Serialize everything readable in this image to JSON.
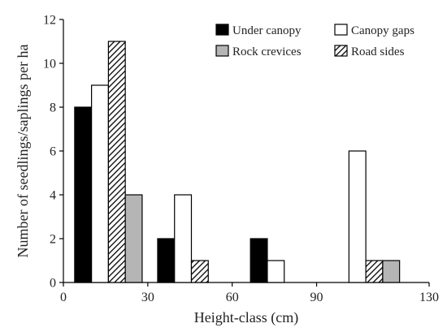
{
  "chart_data": {
    "type": "bar",
    "xlabel": "Height-class (cm)",
    "ylabel": "Number of seedlings/saplings per ha",
    "xlim": [
      0,
      130
    ],
    "ylim": [
      0,
      12
    ],
    "xticks": [
      "0",
      "30",
      "60",
      "90",
      "130"
    ],
    "yticks": [
      "0",
      "2",
      "4",
      "6",
      "8",
      "10",
      "12"
    ],
    "grid": false,
    "legend_position": "top-right",
    "categories": [
      "0-30",
      "30-60",
      "60-90",
      "90-130"
    ],
    "series": [
      {
        "name": "Under canopy",
        "pattern": "solid",
        "color": "#000000",
        "values": [
          8,
          2,
          2,
          0
        ]
      },
      {
        "name": "Canopy gaps",
        "pattern": "solid",
        "color": "#ffffff",
        "values": [
          9,
          4,
          1,
          6
        ]
      },
      {
        "name": "Road sides",
        "pattern": "hatch",
        "color": "#000000",
        "values": [
          11,
          1,
          0,
          1
        ]
      },
      {
        "name": "Rock crevices",
        "pattern": "solid",
        "color": "#b5b5b5",
        "values": [
          4,
          0,
          0,
          1
        ]
      }
    ]
  }
}
